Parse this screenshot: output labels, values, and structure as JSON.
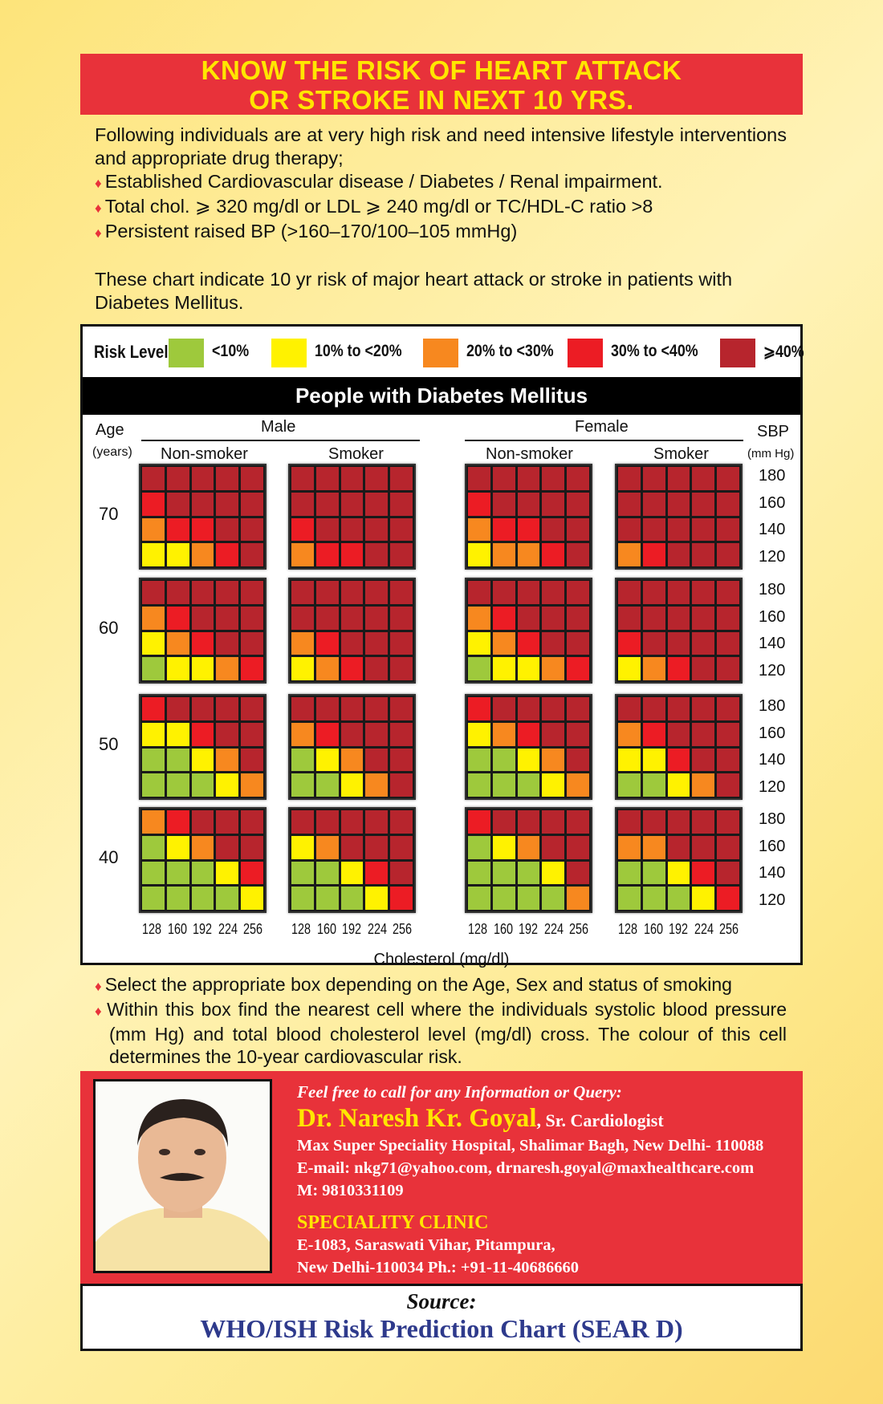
{
  "title": {
    "line1": "KNOW THE RISK OF HEART ATTACK",
    "line2": "OR STROKE IN NEXT 10 YRS."
  },
  "intro": {
    "text": "Following individuals are at very high risk and need intensive lifestyle interventions and appropriate drug therapy;",
    "bullets": [
      "Established Cardiovascular disease / Diabetes / Renal impairment.",
      "Total chol. ⩾ 320 mg/dl or LDL ⩾ 240 mg/dl or TC/HDL-C ratio >8",
      "Persistent raised BP (>160–170/100–105 mmHg)"
    ],
    "bullet_icon": "diamond-icon"
  },
  "para2": "These chart indicate 10 yr risk of major heart attack or stroke in patients with Diabetes Mellitus.",
  "colors": {
    "accent_red": "#e8323a",
    "title_yellow": "#ffe600"
  },
  "chart_data": {
    "type": "heatmap",
    "title": "People with Diabetes Mellitus",
    "legend": {
      "title": "Risk Level",
      "placement": "top",
      "levels": [
        {
          "label": "<10%",
          "color": "#9ec93c"
        },
        {
          "label": "10% to <20%",
          "color": "#fff200"
        },
        {
          "label": "20% to <30%",
          "color": "#f7881f"
        },
        {
          "label": "30% to <40%",
          "color": "#ec1c24"
        },
        {
          "label": "⩾40%",
          "color": "#b7252d"
        }
      ]
    },
    "sex_labels": [
      "Male",
      "Female"
    ],
    "smoking_labels": [
      "Non-smoker",
      "Smoker"
    ],
    "age_axis": {
      "label": "Age",
      "unit": "(years)",
      "values": [
        "70",
        "60",
        "50",
        "40"
      ]
    },
    "sbp_axis": {
      "label": "SBP",
      "unit": "(mm Hg)",
      "values": [
        "180",
        "160",
        "140",
        "120"
      ]
    },
    "cholesterol_axis": {
      "label": "Cholesterol (mg/dl)",
      "values": [
        "128",
        "160",
        "192",
        "224",
        "256"
      ]
    },
    "level_encoding": "1=<10%, 2=10-<20%, 3=20-<30%, 4=30-<40%, 5=>=40%; rows SBP 180→120, columns cholesterol 128→256",
    "panels": [
      {
        "sex": "Male",
        "smoking": "Non-smoker",
        "age": "70",
        "levels": [
          [
            5,
            5,
            5,
            5,
            5
          ],
          [
            4,
            5,
            5,
            5,
            5
          ],
          [
            3,
            4,
            4,
            5,
            5
          ],
          [
            2,
            2,
            3,
            4,
            5
          ]
        ]
      },
      {
        "sex": "Male",
        "smoking": "Smoker",
        "age": "70",
        "levels": [
          [
            5,
            5,
            5,
            5,
            5
          ],
          [
            5,
            5,
            5,
            5,
            5
          ],
          [
            4,
            5,
            5,
            5,
            5
          ],
          [
            3,
            4,
            4,
            5,
            5
          ]
        ]
      },
      {
        "sex": "Female",
        "smoking": "Non-smoker",
        "age": "70",
        "levels": [
          [
            5,
            5,
            5,
            5,
            5
          ],
          [
            4,
            5,
            5,
            5,
            5
          ],
          [
            3,
            4,
            4,
            5,
            5
          ],
          [
            2,
            3,
            3,
            4,
            5
          ]
        ]
      },
      {
        "sex": "Female",
        "smoking": "Smoker",
        "age": "70",
        "levels": [
          [
            5,
            5,
            5,
            5,
            5
          ],
          [
            5,
            5,
            5,
            5,
            5
          ],
          [
            5,
            5,
            5,
            5,
            5
          ],
          [
            3,
            4,
            5,
            5,
            5
          ]
        ]
      },
      {
        "sex": "Male",
        "smoking": "Non-smoker",
        "age": "60",
        "levels": [
          [
            5,
            5,
            5,
            5,
            5
          ],
          [
            3,
            4,
            5,
            5,
            5
          ],
          [
            2,
            3,
            4,
            5,
            5
          ],
          [
            1,
            2,
            2,
            3,
            4
          ]
        ]
      },
      {
        "sex": "Male",
        "smoking": "Smoker",
        "age": "60",
        "levels": [
          [
            5,
            5,
            5,
            5,
            5
          ],
          [
            5,
            5,
            5,
            5,
            5
          ],
          [
            3,
            4,
            5,
            5,
            5
          ],
          [
            2,
            3,
            4,
            5,
            5
          ]
        ]
      },
      {
        "sex": "Female",
        "smoking": "Non-smoker",
        "age": "60",
        "levels": [
          [
            5,
            5,
            5,
            5,
            5
          ],
          [
            3,
            4,
            5,
            5,
            5
          ],
          [
            2,
            3,
            4,
            5,
            5
          ],
          [
            1,
            2,
            2,
            3,
            4
          ]
        ]
      },
      {
        "sex": "Female",
        "smoking": "Smoker",
        "age": "60",
        "levels": [
          [
            5,
            5,
            5,
            5,
            5
          ],
          [
            5,
            5,
            5,
            5,
            5
          ],
          [
            4,
            5,
            5,
            5,
            5
          ],
          [
            2,
            3,
            4,
            5,
            5
          ]
        ]
      },
      {
        "sex": "Male",
        "smoking": "Non-smoker",
        "age": "50",
        "levels": [
          [
            4,
            5,
            5,
            5,
            5
          ],
          [
            2,
            2,
            4,
            5,
            5
          ],
          [
            1,
            1,
            2,
            3,
            5
          ],
          [
            1,
            1,
            1,
            2,
            3
          ]
        ]
      },
      {
        "sex": "Male",
        "smoking": "Smoker",
        "age": "50",
        "levels": [
          [
            5,
            5,
            5,
            5,
            5
          ],
          [
            3,
            4,
            5,
            5,
            5
          ],
          [
            1,
            2,
            3,
            5,
            5
          ],
          [
            1,
            1,
            2,
            3,
            5
          ]
        ]
      },
      {
        "sex": "Female",
        "smoking": "Non-smoker",
        "age": "50",
        "levels": [
          [
            4,
            5,
            5,
            5,
            5
          ],
          [
            2,
            3,
            4,
            5,
            5
          ],
          [
            1,
            1,
            2,
            3,
            5
          ],
          [
            1,
            1,
            1,
            2,
            3
          ]
        ]
      },
      {
        "sex": "Female",
        "smoking": "Smoker",
        "age": "50",
        "levels": [
          [
            5,
            5,
            5,
            5,
            5
          ],
          [
            3,
            4,
            5,
            5,
            5
          ],
          [
            2,
            2,
            4,
            5,
            5
          ],
          [
            1,
            1,
            2,
            3,
            5
          ]
        ]
      },
      {
        "sex": "Male",
        "smoking": "Non-smoker",
        "age": "40",
        "levels": [
          [
            3,
            4,
            5,
            5,
            5
          ],
          [
            1,
            2,
            3,
            5,
            5
          ],
          [
            1,
            1,
            1,
            2,
            4
          ],
          [
            1,
            1,
            1,
            1,
            2
          ]
        ]
      },
      {
        "sex": "Male",
        "smoking": "Smoker",
        "age": "40",
        "levels": [
          [
            5,
            5,
            5,
            5,
            5
          ],
          [
            2,
            3,
            5,
            5,
            5
          ],
          [
            1,
            1,
            2,
            4,
            5
          ],
          [
            1,
            1,
            1,
            2,
            4
          ]
        ]
      },
      {
        "sex": "Female",
        "smoking": "Non-smoker",
        "age": "40",
        "levels": [
          [
            4,
            5,
            5,
            5,
            5
          ],
          [
            1,
            2,
            3,
            5,
            5
          ],
          [
            1,
            1,
            1,
            2,
            5
          ],
          [
            1,
            1,
            1,
            1,
            3
          ]
        ]
      },
      {
        "sex": "Female",
        "smoking": "Smoker",
        "age": "40",
        "levels": [
          [
            5,
            5,
            5,
            5,
            5
          ],
          [
            3,
            3,
            5,
            5,
            5
          ],
          [
            1,
            1,
            2,
            4,
            5
          ],
          [
            1,
            1,
            1,
            2,
            4
          ]
        ]
      }
    ]
  },
  "instructions": [
    "Select the appropriate box depending on the Age, Sex and status of smoking",
    "Within this box find the nearest cell where the individuals systolic blood pressure (mm Hg) and total blood cholesterol level (mg/dl) cross. The colour of this cell determines the 10-year cardiovascular risk."
  ],
  "doctor": {
    "query": "Feel free to call for any Information or Query:",
    "name": "Dr. Naresh Kr. Goyal",
    "title": ", Sr. Cardiologist",
    "hospital": "Max Super Speciality Hospital, Shalimar Bagh, New Delhi- 110088",
    "email": "E-mail: nkg71@yahoo.com, drnaresh.goyal@maxhealthcare.com",
    "mobile": "M: 9810331109",
    "clinic_title": "SPECIALITY CLINIC",
    "clinic_addr1": "E-1083, Saraswati Vihar, Pitampura,",
    "clinic_addr2": "New Delhi-110034 Ph.: +91-11-40686660"
  },
  "source": {
    "label": "Source:",
    "text": "WHO/ISH Risk Prediction Chart (SEAR D)"
  }
}
